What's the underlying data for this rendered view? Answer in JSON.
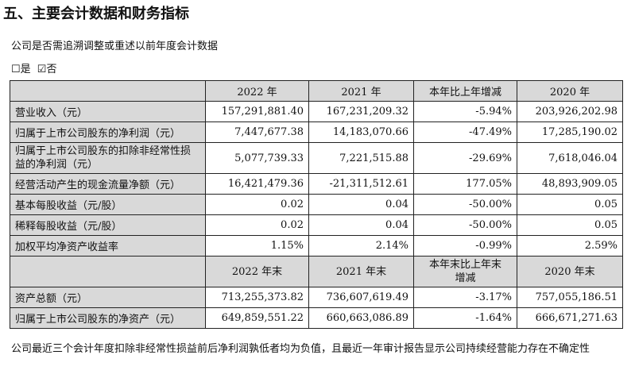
{
  "title": "五、主要会计数据和财务指标",
  "question": "公司是否需追溯调整或重述以前年度会计数据",
  "options": {
    "yes": "☐是",
    "no": "☑否"
  },
  "table1": {
    "headers": [
      "",
      "2022 年",
      "2021 年",
      "本年比上年增减",
      "2020 年"
    ],
    "rows": [
      [
        "营业收入（元）",
        "157,291,881.40",
        "167,231,209.32",
        "-5.94%",
        "203,926,202.98"
      ],
      [
        "归属于上市公司股东的净利润（元）",
        "7,447,677.38",
        "14,183,070.66",
        "-47.49%",
        "17,285,190.02"
      ],
      [
        "归属于上市公司股东的扣除非经常性损益的净利润（元）",
        "5,077,739.33",
        "7,221,515.88",
        "-29.69%",
        "7,618,046.04"
      ],
      [
        "经营活动产生的现金流量净额（元）",
        "16,421,479.36",
        "-21,311,512.61",
        "177.05%",
        "48,893,909.05"
      ],
      [
        "基本每股收益（元/股）",
        "0.02",
        "0.04",
        "-50.00%",
        "0.05"
      ],
      [
        "稀释每股收益（元/股）",
        "0.02",
        "0.04",
        "-50.00%",
        "0.05"
      ],
      [
        "加权平均净资产收益率",
        "1.15%",
        "2.14%",
        "-0.99%",
        "2.59%"
      ]
    ]
  },
  "table2": {
    "headers": [
      "",
      "2022 年末",
      "2021 年末",
      "本年末比上年末增减",
      "2020 年末"
    ],
    "rows": [
      [
        "资产总额（元）",
        "713,255,373.82",
        "736,607,619.49",
        "-3.17%",
        "757,055,186.51"
      ],
      [
        "归属于上市公司股东的净资产（元）",
        "649,859,551.22",
        "660,663,086.89",
        "-1.64%",
        "666,671,271.63"
      ]
    ]
  },
  "footnote": "公司最近三个会计年度扣除非经常性损益前后净利润孰低者均为负值，且最近一年审计报告显示公司持续经营能力存在不确定性"
}
